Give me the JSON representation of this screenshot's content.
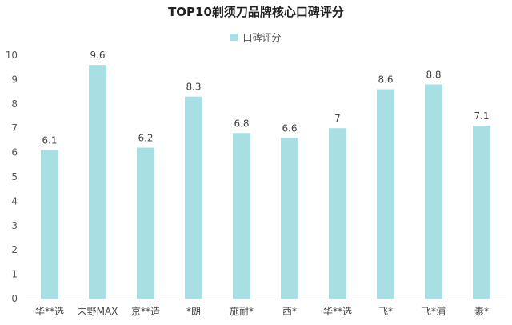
{
  "chart_data": {
    "type": "bar",
    "title": "TOP10剃须刀品牌核心口碑评分",
    "legend": "口碑评分",
    "legend_position": "top",
    "categories": [
      "华**选",
      "未野MAX",
      "京**造",
      "*朗",
      "施耐*",
      "西*",
      "华**选",
      "飞*",
      "飞*浦",
      "素*"
    ],
    "values": [
      6.1,
      9.6,
      6.2,
      8.3,
      6.8,
      6.6,
      7,
      8.6,
      8.8,
      7.1
    ],
    "value_labels": [
      "6.1",
      "9.6",
      "6.2",
      "8.3",
      "6.8",
      "6.6",
      "7",
      "8.6",
      "8.8",
      "7.1"
    ],
    "ylim": [
      0,
      10
    ],
    "yticks": [
      "0",
      "1",
      "2",
      "3",
      "4",
      "5",
      "6",
      "7",
      "8",
      "9",
      "10"
    ],
    "xlabel": "",
    "ylabel": "",
    "grid": false,
    "color": "#a7dfe3"
  }
}
